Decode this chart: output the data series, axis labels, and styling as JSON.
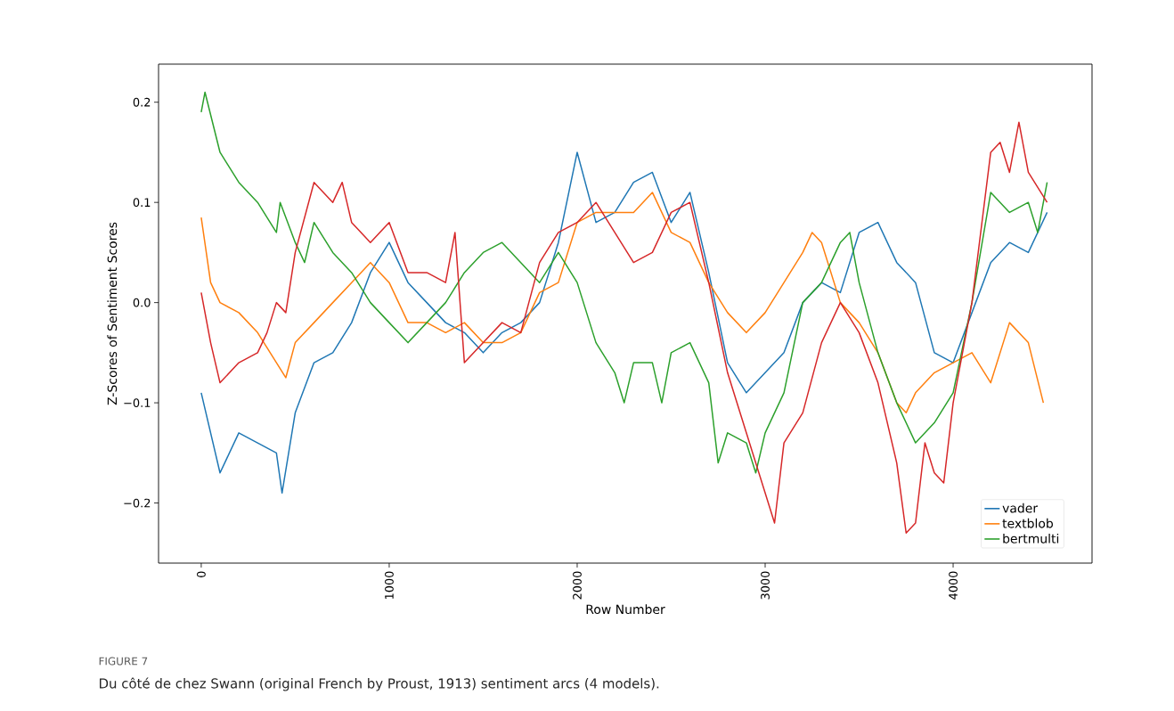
{
  "chart_data": {
    "type": "line",
    "xlabel": "Row Number",
    "ylabel": "Z-Scores of Sentiment Scores",
    "xlim": [
      -227,
      4739
    ],
    "ylim": [
      -0.26,
      0.238
    ],
    "xticks": [
      0,
      1000,
      2000,
      3000,
      4000
    ],
    "yticks": [
      {
        "value": -0.2,
        "label": "−0.2"
      },
      {
        "value": -0.1,
        "label": "−0.1"
      },
      {
        "value": 0.0,
        "label": "0.0"
      },
      {
        "value": 0.1,
        "label": "0.1"
      },
      {
        "value": 0.2,
        "label": "0.2"
      }
    ],
    "legend": "bottom right",
    "line_style": "solid",
    "annotations": [
      "FIGURE 7",
      "Du côté de chez Swann (original French by Proust, 1913) sentiment arcs (4 models)."
    ],
    "series": [
      {
        "name": "vader",
        "color": "#1f77b4",
        "x": [
          0,
          100,
          200,
          300,
          400,
          430,
          500,
          600,
          700,
          800,
          900,
          1000,
          1100,
          1200,
          1300,
          1400,
          1500,
          1600,
          1700,
          1800,
          1900,
          2000,
          2100,
          2200,
          2300,
          2400,
          2500,
          2600,
          2700,
          2800,
          2900,
          3000,
          3100,
          3200,
          3300,
          3400,
          3500,
          3600,
          3700,
          3800,
          3900,
          4000,
          4100,
          4200,
          4300,
          4400,
          4500
        ],
        "values": [
          -0.09,
          -0.17,
          -0.13,
          -0.14,
          -0.15,
          -0.19,
          -0.11,
          -0.06,
          -0.05,
          -0.02,
          0.03,
          0.06,
          0.02,
          0.0,
          -0.02,
          -0.03,
          -0.05,
          -0.03,
          -0.02,
          0.0,
          0.06,
          0.15,
          0.08,
          0.09,
          0.12,
          0.13,
          0.08,
          0.11,
          0.03,
          -0.06,
          -0.09,
          -0.07,
          -0.05,
          0.0,
          0.02,
          0.01,
          0.07,
          0.08,
          0.04,
          0.02,
          -0.05,
          -0.06,
          -0.01,
          0.04,
          0.06,
          0.05,
          0.09
        ]
      },
      {
        "name": "textblob",
        "color": "#ff7f0e",
        "x": [
          0,
          50,
          100,
          200,
          300,
          400,
          450,
          500,
          600,
          700,
          800,
          900,
          1000,
          1100,
          1200,
          1300,
          1400,
          1500,
          1600,
          1700,
          1800,
          1900,
          2000,
          2100,
          2200,
          2300,
          2400,
          2500,
          2600,
          2700,
          2800,
          2900,
          3000,
          3100,
          3200,
          3250,
          3300,
          3400,
          3500,
          3600,
          3700,
          3750,
          3800,
          3900,
          4000,
          4100,
          4200,
          4300,
          4400,
          4480
        ],
        "values": [
          0.085,
          0.02,
          0.0,
          -0.01,
          -0.03,
          -0.06,
          -0.075,
          -0.04,
          -0.02,
          0.0,
          0.02,
          0.04,
          0.02,
          -0.02,
          -0.02,
          -0.03,
          -0.02,
          -0.04,
          -0.04,
          -0.03,
          0.01,
          0.02,
          0.08,
          0.09,
          0.09,
          0.09,
          0.11,
          0.07,
          0.06,
          0.02,
          -0.01,
          -0.03,
          -0.01,
          0.02,
          0.05,
          0.07,
          0.06,
          0.0,
          -0.02,
          -0.05,
          -0.1,
          -0.11,
          -0.09,
          -0.07,
          -0.06,
          -0.05,
          -0.08,
          -0.02,
          -0.04,
          -0.1
        ]
      },
      {
        "name": "bertmulti",
        "color": "#2ca02c",
        "x": [
          0,
          20,
          100,
          200,
          300,
          400,
          420,
          500,
          550,
          600,
          700,
          800,
          900,
          1000,
          1100,
          1200,
          1300,
          1400,
          1500,
          1600,
          1700,
          1800,
          1900,
          2000,
          2100,
          2200,
          2250,
          2300,
          2400,
          2450,
          2500,
          2600,
          2700,
          2750,
          2800,
          2900,
          2950,
          3000,
          3100,
          3200,
          3300,
          3400,
          3450,
          3500,
          3600,
          3700,
          3800,
          3900,
          4000,
          4100,
          4200,
          4300,
          4400,
          4450,
          4500
        ],
        "values": [
          0.19,
          0.21,
          0.15,
          0.12,
          0.1,
          0.07,
          0.1,
          0.06,
          0.04,
          0.08,
          0.05,
          0.03,
          0.0,
          -0.02,
          -0.04,
          -0.02,
          0.0,
          0.03,
          0.05,
          0.06,
          0.04,
          0.02,
          0.05,
          0.02,
          -0.04,
          -0.07,
          -0.1,
          -0.06,
          -0.06,
          -0.1,
          -0.05,
          -0.04,
          -0.08,
          -0.16,
          -0.13,
          -0.14,
          -0.17,
          -0.13,
          -0.09,
          0.0,
          0.02,
          0.06,
          0.07,
          0.02,
          -0.05,
          -0.1,
          -0.14,
          -0.12,
          -0.09,
          0.0,
          0.11,
          0.09,
          0.1,
          0.07,
          0.12
        ]
      },
      {
        "color": "#d62728",
        "x": [
          0,
          50,
          100,
          200,
          300,
          350,
          400,
          450,
          500,
          600,
          700,
          750,
          800,
          900,
          1000,
          1100,
          1200,
          1300,
          1350,
          1400,
          1500,
          1600,
          1700,
          1800,
          1900,
          2000,
          2100,
          2200,
          2300,
          2400,
          2500,
          2600,
          2700,
          2800,
          2900,
          3000,
          3050,
          3100,
          3200,
          3300,
          3400,
          3500,
          3600,
          3700,
          3750,
          3800,
          3850,
          3900,
          3950,
          4000,
          4100,
          4200,
          4250,
          4300,
          4350,
          4400,
          4500
        ],
        "values": [
          0.01,
          -0.04,
          -0.08,
          -0.06,
          -0.05,
          -0.03,
          0.0,
          -0.01,
          0.05,
          0.12,
          0.1,
          0.12,
          0.08,
          0.06,
          0.08,
          0.03,
          0.03,
          0.02,
          0.07,
          -0.06,
          -0.04,
          -0.02,
          -0.03,
          0.04,
          0.07,
          0.08,
          0.1,
          0.07,
          0.04,
          0.05,
          0.09,
          0.1,
          0.02,
          -0.07,
          -0.13,
          -0.19,
          -0.22,
          -0.14,
          -0.11,
          -0.04,
          0.0,
          -0.03,
          -0.08,
          -0.16,
          -0.23,
          -0.22,
          -0.14,
          -0.17,
          -0.18,
          -0.1,
          0.0,
          0.15,
          0.16,
          0.13,
          0.18,
          0.13,
          0.1
        ]
      }
    ]
  }
}
